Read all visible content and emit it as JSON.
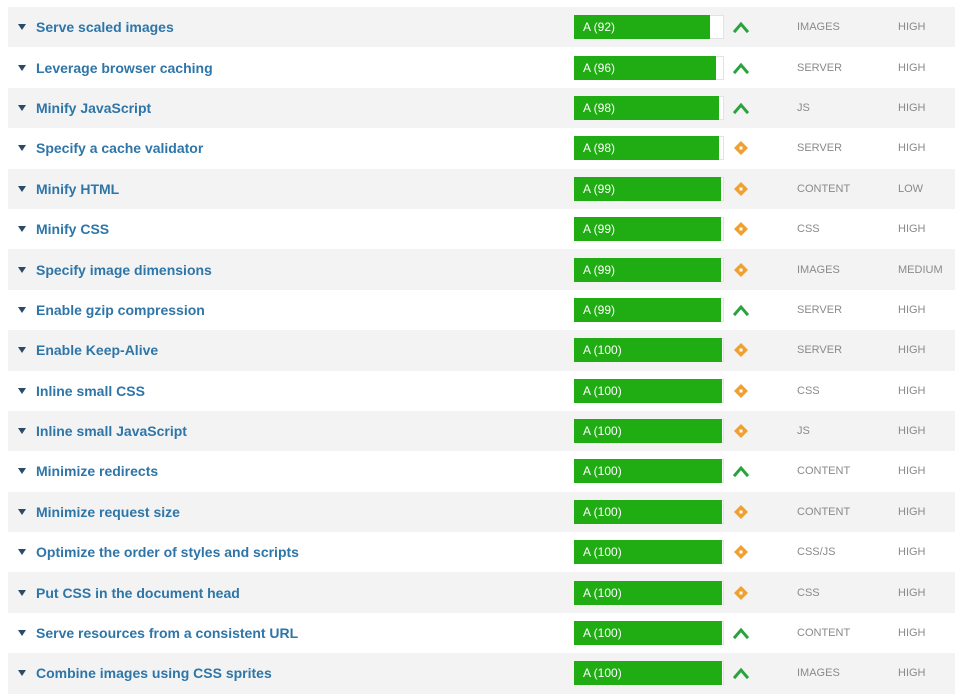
{
  "colors": {
    "title": "#2e75a8",
    "grade_fill": "#20ad14",
    "up_icon": "#2aa33f",
    "neutral_icon": "#f0a030",
    "meta_text": "#8a8a8a"
  },
  "rows": [
    {
      "title": "Serve scaled images",
      "grade": "A (92)",
      "score": 92,
      "trend": "up",
      "type": "IMAGES",
      "priority": "HIGH"
    },
    {
      "title": "Leverage browser caching",
      "grade": "A (96)",
      "score": 96,
      "trend": "up",
      "type": "SERVER",
      "priority": "HIGH"
    },
    {
      "title": "Minify JavaScript",
      "grade": "A (98)",
      "score": 98,
      "trend": "up",
      "type": "JS",
      "priority": "HIGH"
    },
    {
      "title": "Specify a cache validator",
      "grade": "A (98)",
      "score": 98,
      "trend": "neutral",
      "type": "SERVER",
      "priority": "HIGH"
    },
    {
      "title": "Minify HTML",
      "grade": "A (99)",
      "score": 99,
      "trend": "neutral",
      "type": "CONTENT",
      "priority": "LOW"
    },
    {
      "title": "Minify CSS",
      "grade": "A (99)",
      "score": 99,
      "trend": "neutral",
      "type": "CSS",
      "priority": "HIGH"
    },
    {
      "title": "Specify image dimensions",
      "grade": "A (99)",
      "score": 99,
      "trend": "neutral",
      "type": "IMAGES",
      "priority": "MEDIUM"
    },
    {
      "title": "Enable gzip compression",
      "grade": "A (99)",
      "score": 99,
      "trend": "up",
      "type": "SERVER",
      "priority": "HIGH"
    },
    {
      "title": "Enable Keep-Alive",
      "grade": "A (100)",
      "score": 100,
      "trend": "neutral",
      "type": "SERVER",
      "priority": "HIGH"
    },
    {
      "title": "Inline small CSS",
      "grade": "A (100)",
      "score": 100,
      "trend": "neutral",
      "type": "CSS",
      "priority": "HIGH"
    },
    {
      "title": "Inline small JavaScript",
      "grade": "A (100)",
      "score": 100,
      "trend": "neutral",
      "type": "JS",
      "priority": "HIGH"
    },
    {
      "title": "Minimize redirects",
      "grade": "A (100)",
      "score": 100,
      "trend": "up",
      "type": "CONTENT",
      "priority": "HIGH"
    },
    {
      "title": "Minimize request size",
      "grade": "A (100)",
      "score": 100,
      "trend": "neutral",
      "type": "CONTENT",
      "priority": "HIGH"
    },
    {
      "title": "Optimize the order of styles and scripts",
      "grade": "A (100)",
      "score": 100,
      "trend": "neutral",
      "type": "CSS/JS",
      "priority": "HIGH"
    },
    {
      "title": "Put CSS in the document head",
      "grade": "A (100)",
      "score": 100,
      "trend": "neutral",
      "type": "CSS",
      "priority": "HIGH"
    },
    {
      "title": "Serve resources from a consistent URL",
      "grade": "A (100)",
      "score": 100,
      "trend": "up",
      "type": "CONTENT",
      "priority": "HIGH"
    },
    {
      "title": "Combine images using CSS sprites",
      "grade": "A (100)",
      "score": 100,
      "trend": "up",
      "type": "IMAGES",
      "priority": "HIGH"
    }
  ]
}
